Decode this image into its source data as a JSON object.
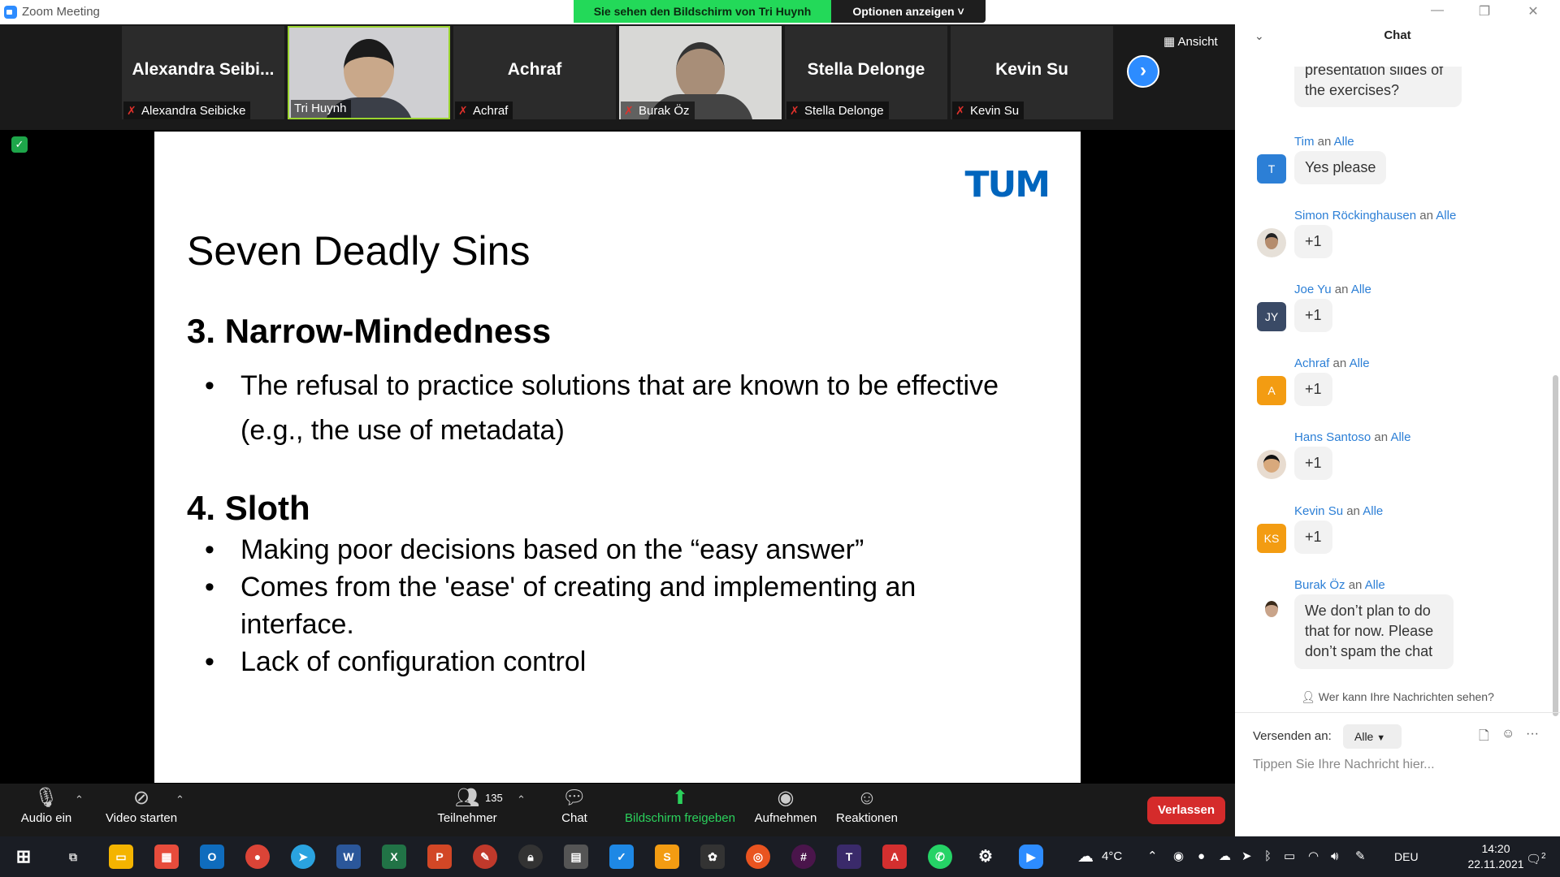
{
  "window": {
    "title": "Zoom Meeting"
  },
  "banner": {
    "text": "Sie sehen den Bildschirm von Tri Huynh",
    "options": "Optionen anzeigen ˅"
  },
  "view_label": "Ansicht",
  "participants": [
    {
      "big_name": "Alexandra  Seibi...",
      "label": "Alexandra Seibicke",
      "muted": true,
      "video": false
    },
    {
      "big_name": "",
      "label": "Tri Huynh",
      "muted": false,
      "video": true,
      "active": true
    },
    {
      "big_name": "Achraf",
      "label": "Achraf",
      "muted": true,
      "video": false
    },
    {
      "big_name": "",
      "label": "Burak Öz",
      "muted": true,
      "video": true
    },
    {
      "big_name": "Stella Delonge",
      "label": "Stella Delonge",
      "muted": true,
      "video": false
    },
    {
      "big_name": "Kevin Su",
      "label": "Kevin Su",
      "muted": true,
      "video": false
    }
  ],
  "slide": {
    "logo": "TUM",
    "title": "Seven Deadly Sins",
    "sections": [
      {
        "heading": "3. Narrow-Mindedness",
        "bullets": [
          "The refusal to practice solutions that are known to be effective (e.g., the use of metadata)"
        ]
      },
      {
        "heading": "4. Sloth",
        "bullets": [
          "Making poor decisions based on the “easy answer”",
          "Comes from the 'ease' of creating and implementing an interface.",
          "Lack of configuration control"
        ]
      }
    ]
  },
  "toolbar": {
    "audio": "Audio ein",
    "video": "Video starten",
    "participants": "Teilnehmer",
    "participant_count": "135",
    "chat": "Chat",
    "share": "Bildschirm freigeben",
    "record": "Aufnehmen",
    "reactions": "Reaktionen",
    "leave": "Verlassen"
  },
  "chat": {
    "title": "Chat",
    "partial_message": "presentation slides of the exercises?",
    "messages": [
      {
        "sender": "Tim",
        "to": "Alle",
        "text": "Yes please",
        "avatar": "T",
        "avatar_color": "#2c7fd6"
      },
      {
        "sender": "Simon Röckinghausen",
        "to": "Alle",
        "text": "+1",
        "avatar": "",
        "avatar_color": "#d8d8d8"
      },
      {
        "sender": "Joe Yu",
        "to": "Alle",
        "text": "+1",
        "avatar": "JY",
        "avatar_color": "#3a4a66"
      },
      {
        "sender": "Achraf",
        "to": "Alle",
        "text": "+1",
        "avatar": "A",
        "avatar_color": "#f39c12"
      },
      {
        "sender": "Hans Santoso",
        "to": "Alle",
        "text": "+1",
        "avatar": "",
        "avatar_color": "#d8d8d8"
      },
      {
        "sender": "Kevin Su",
        "to": "Alle",
        "text": "+1",
        "avatar": "KS",
        "avatar_color": "#f39c12"
      },
      {
        "sender": "Burak Öz",
        "to": "Alle",
        "text": "We don’t plan to do that for now. Please don’t spam the chat",
        "avatar": "",
        "avatar_color": "#d8d8d8"
      }
    ],
    "connector": "an",
    "who_can_see": "Wer kann Ihre Nachrichten sehen?",
    "send_to_label": "Versenden an:",
    "send_to_value": "Alle",
    "input_placeholder": "Tippen Sie Ihre Nachricht hier..."
  },
  "taskbar": {
    "weather": "4°C",
    "language": "DEU",
    "time": "14:20",
    "date": "22.11.2021",
    "notifications": "2"
  }
}
